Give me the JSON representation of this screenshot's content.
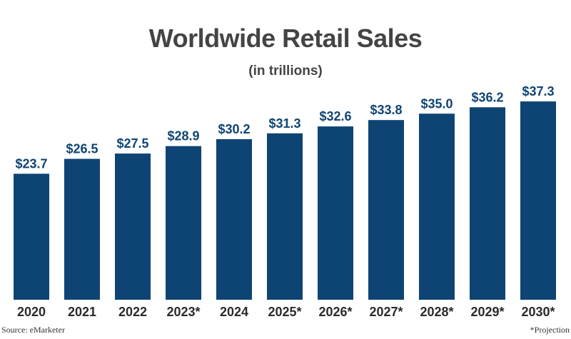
{
  "chart_data": {
    "type": "bar",
    "title": "Worldwide Retail Sales",
    "subtitle": "(in trillions)",
    "categories": [
      "2020",
      "2021",
      "2022",
      "2023*",
      "2024",
      "2025*",
      "2026*",
      "2027*",
      "2028*",
      "2029*",
      "2030*"
    ],
    "values": [
      23.7,
      26.5,
      27.5,
      28.9,
      30.2,
      31.3,
      32.6,
      33.8,
      35.0,
      36.2,
      37.3
    ],
    "data_labels": [
      "$23.7",
      "$26.5",
      "$27.5",
      "$28.9",
      "$30.2",
      "$31.3",
      "$32.6",
      "$33.8",
      "$35.0",
      "$36.2",
      "$37.3"
    ],
    "xlabel": "",
    "ylabel": "",
    "ylim": [
      0,
      40
    ],
    "grid": false,
    "legend": "none",
    "bar_color": "#0e4474"
  },
  "footer": {
    "source": "Source: eMarketer",
    "note": "*Projection"
  }
}
